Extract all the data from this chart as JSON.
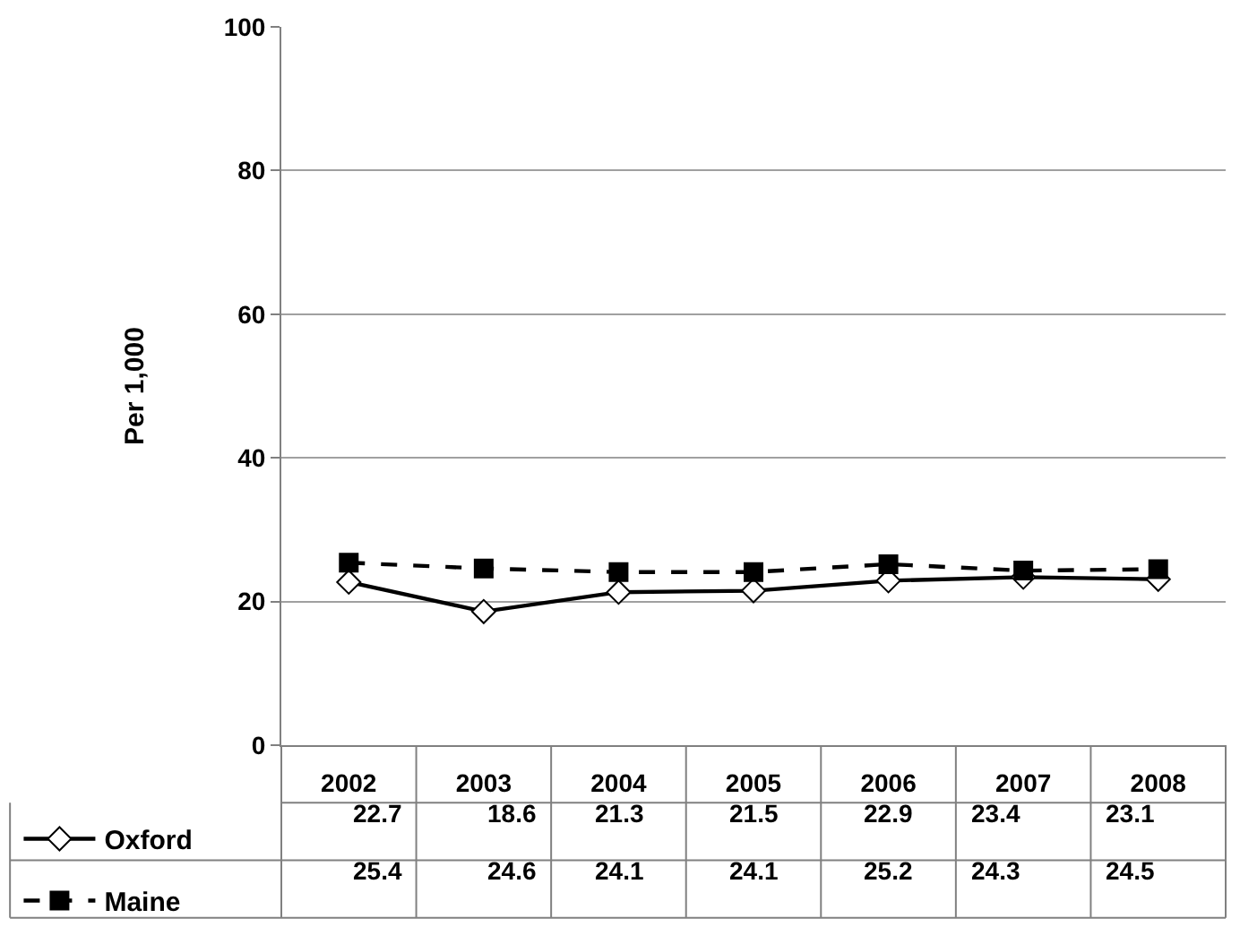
{
  "chart_data": {
    "type": "line",
    "ylabel": "Per 1,000",
    "categories": [
      "2002",
      "2003",
      "2004",
      "2005",
      "2006",
      "2007",
      "2008"
    ],
    "series": [
      {
        "name": "Oxford",
        "color": "#000000",
        "marker": "diamond",
        "line_style": "solid",
        "values": [
          22.7,
          18.6,
          21.3,
          21.5,
          22.9,
          23.4,
          23.1
        ]
      },
      {
        "name": "Maine",
        "color": "#000000",
        "marker": "square",
        "line_style": "dashed",
        "values": [
          25.4,
          24.6,
          24.1,
          24.1,
          25.2,
          24.3,
          24.5
        ]
      }
    ],
    "ylim": [
      0,
      100
    ],
    "yticks": [
      0,
      20,
      40,
      60,
      80,
      100
    ],
    "grid": "y",
    "legend": "bottom left",
    "data_labels": true
  }
}
